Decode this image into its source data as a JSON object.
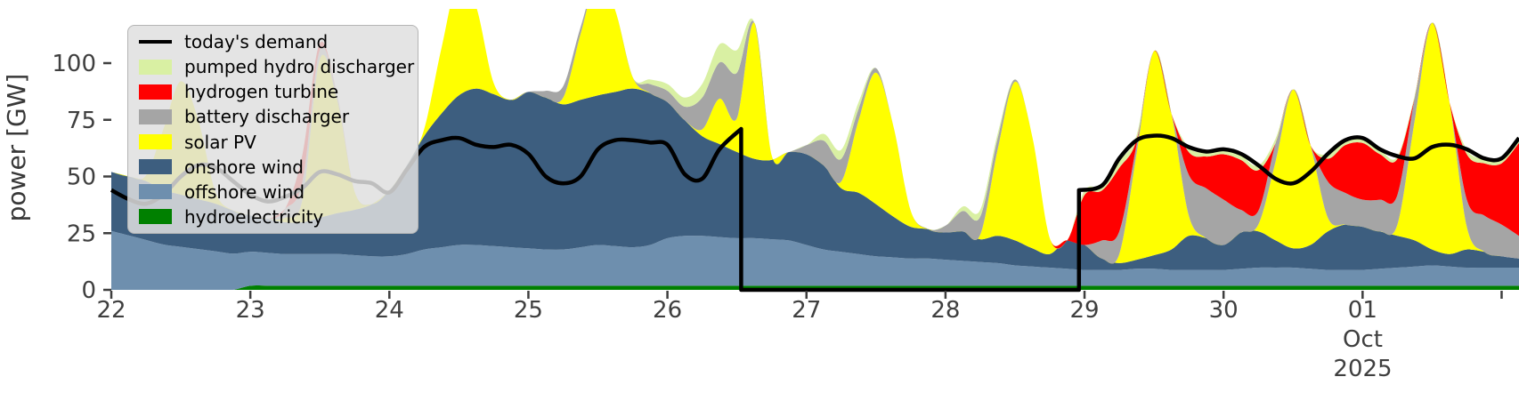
{
  "figure": {
    "background": "#ffffff"
  },
  "axes": {
    "ylabel": "power [GW]",
    "y_ticks": [
      0,
      25,
      50,
      75,
      100
    ],
    "ylim": [
      0,
      124
    ],
    "x_tick_days": [
      22,
      23,
      24,
      25,
      26,
      27,
      28,
      29,
      30,
      31
    ],
    "x_tick_labels": [
      "22",
      "23",
      "24",
      "25",
      "26",
      "27",
      "28",
      "29",
      "30",
      "01"
    ],
    "x_minor_tick_days": [
      32
    ],
    "date_label_month": "Oct",
    "date_label_year": "2025",
    "text_color": "#3f3f3f"
  },
  "legend": {
    "entries": [
      {
        "id": "todays-demand",
        "label": "today's demand",
        "color": "#000000",
        "type": "line"
      },
      {
        "id": "pumped-hydro-discharger",
        "label": "pumped hydro discharger",
        "color": "#d9f0a3",
        "type": "patch"
      },
      {
        "id": "hydrogen-turbine",
        "label": "hydrogen turbine",
        "color": "#ff0000",
        "type": "patch"
      },
      {
        "id": "battery-discharger",
        "label": "battery discharger",
        "color": "#a5a5a5",
        "type": "patch"
      },
      {
        "id": "solar-pv",
        "label": "solar PV",
        "color": "#ffff00",
        "type": "patch"
      },
      {
        "id": "onshore-wind",
        "label": "onshore wind",
        "color": "#3d5e7f",
        "type": "patch"
      },
      {
        "id": "offshore-wind",
        "label": "offshore wind",
        "color": "#6e8fae",
        "type": "patch"
      },
      {
        "id": "hydroelectricity",
        "label": "hydroelectricity",
        "color": "#008000",
        "type": "patch"
      }
    ]
  },
  "chart_data": {
    "type": "area",
    "stacked": true,
    "title": "",
    "xlabel": "",
    "ylabel": "power [GW]",
    "x_unit": "day of month, Sep 22 - Oct 2, 2025",
    "x_start": 22,
    "x_end": 32.125,
    "x_step": 0.125,
    "grid": false,
    "legend_position": "upper-left",
    "series": [
      {
        "id": "hydroelectricity",
        "name": "hydroelectricity",
        "color": "#008000",
        "values": [
          0,
          0,
          0,
          0,
          0,
          0,
          0,
          0,
          1.8,
          1.8,
          1.8,
          1.8,
          1.8,
          1.8,
          1.8,
          1.8,
          1.8,
          1.8,
          1.8,
          1.8,
          1.8,
          1.8,
          1.8,
          1.8,
          1.8,
          1.8,
          1.8,
          1.8,
          1.8,
          1.8,
          1.8,
          1.8,
          1.8,
          1.8,
          1.8,
          1.8,
          1.8,
          1.8,
          1.8,
          1.8,
          1.8,
          1.8,
          1.8,
          1.8,
          1.8,
          1.8,
          1.8,
          1.8,
          1.8,
          1.8,
          1.8,
          1.8,
          1.8,
          1.8,
          1.8,
          1.8,
          1.8,
          1.8,
          1.8,
          1.8,
          1.8,
          1.8,
          1.8,
          1.8,
          1.8,
          1.8,
          1.8,
          1.8,
          1.8,
          1.8,
          1.8,
          1.8,
          1.8,
          1.8,
          1.8,
          1.8,
          1.8,
          1.8,
          1.8,
          1.8,
          1.8,
          1.8
        ]
      },
      {
        "id": "offshore-wind",
        "name": "offshore wind",
        "color": "#6e8fae",
        "values": [
          26,
          24,
          22,
          20,
          19,
          18,
          17,
          16,
          15,
          14.5,
          14,
          14,
          14,
          14,
          13.5,
          13,
          13,
          14,
          16,
          17,
          18,
          18,
          17.5,
          17,
          16.5,
          16,
          16,
          17,
          18,
          17.5,
          17,
          18,
          21,
          22,
          22,
          21.5,
          21,
          21,
          20.5,
          20,
          18,
          16,
          15,
          14,
          13,
          12.5,
          12,
          12,
          11.5,
          11,
          10.5,
          10,
          9,
          8.5,
          8,
          7.5,
          7,
          7,
          7,
          7.5,
          7.5,
          7,
          7,
          7,
          7,
          7.5,
          8,
          8,
          8,
          7.5,
          7,
          7,
          7,
          7.5,
          8,
          8.5,
          9,
          8.5,
          8,
          8,
          8,
          8
        ]
      },
      {
        "id": "onshore-wind",
        "name": "onshore wind",
        "color": "#3d5e7f",
        "values": [
          26,
          26,
          26,
          24,
          23,
          22,
          21,
          19,
          16,
          15,
          14,
          14,
          16,
          18,
          20,
          23,
          29,
          39,
          50,
          59,
          66,
          69,
          67,
          65,
          69,
          67,
          64,
          65,
          66,
          68,
          70,
          67,
          60,
          51,
          44,
          41,
          38,
          35,
          35,
          39,
          40,
          37,
          28,
          27,
          23,
          18,
          14,
          13,
          12,
          13,
          10,
          12,
          11,
          8,
          6,
          12.5,
          11,
          5,
          3,
          4,
          6,
          9,
          15,
          14,
          11,
          16,
          16,
          12,
          8.5,
          10.5,
          17,
          20,
          19,
          16.5,
          14,
          11.5,
          7,
          5.5,
          8,
          7,
          5,
          4
        ]
      },
      {
        "id": "solar-pv",
        "name": "solar PV",
        "color": "#ffff00",
        "values": [
          0,
          0,
          2.5,
          27,
          50,
          35,
          5,
          0,
          0,
          0,
          2,
          10,
          70,
          50,
          8,
          0,
          0,
          0,
          3,
          29,
          52,
          36,
          5,
          0,
          0,
          0,
          3,
          29,
          52,
          36,
          5,
          0,
          0,
          0,
          3,
          20,
          15,
          60,
          2,
          0,
          0,
          0,
          3,
          32,
          58,
          40,
          7,
          0,
          0,
          0,
          2,
          38,
          70,
          49,
          7,
          0,
          0,
          0,
          4,
          47,
          90,
          60,
          9,
          0,
          0,
          0,
          3,
          35,
          70,
          44,
          6,
          0,
          0,
          0,
          5,
          53,
          100,
          67,
          10,
          0,
          0,
          0
        ]
      },
      {
        "id": "battery-discharger",
        "name": "battery discharger",
        "color": "#a5a5a5",
        "values": [
          0,
          0,
          0,
          0,
          0,
          0,
          0,
          0,
          0,
          0,
          4,
          8,
          4,
          2,
          0,
          0,
          0,
          0,
          0,
          0,
          0,
          0,
          0,
          0,
          0,
          3,
          5,
          3,
          0,
          0,
          0,
          4,
          5,
          6,
          14,
          16,
          20,
          0,
          0,
          0,
          4,
          11,
          10,
          5,
          2,
          0,
          0,
          0,
          3,
          9,
          8,
          5,
          1,
          0,
          0,
          0,
          0,
          8,
          10,
          4,
          0,
          0,
          18,
          22,
          20,
          10,
          6,
          8,
          0,
          0,
          16,
          14,
          12,
          14,
          13,
          10,
          0,
          0,
          12,
          16,
          14,
          10
        ]
      },
      {
        "id": "hydrogen-turbine",
        "name": "hydrogen turbine",
        "color": "#ff0000",
        "values": [
          0,
          0,
          0,
          0,
          0,
          0,
          0,
          0,
          0,
          0,
          0,
          12,
          3,
          0,
          0,
          0,
          0,
          0,
          0,
          0,
          0,
          0,
          0,
          0,
          0,
          0,
          0,
          0,
          0,
          0,
          0,
          0,
          0,
          0,
          0,
          0,
          0,
          0,
          0,
          0,
          0,
          0,
          0,
          0,
          0,
          0,
          0,
          0,
          0,
          0,
          0,
          0,
          0,
          0,
          0,
          0,
          22,
          22,
          28,
          2,
          0,
          0,
          10,
          14,
          20,
          22,
          18,
          0,
          0,
          0,
          10,
          21,
          25,
          20,
          16,
          0,
          0,
          0,
          20,
          23,
          27,
          41
        ]
      },
      {
        "id": "pumped-hydro-discharger",
        "name": "pumped hydro discharger",
        "color": "#d9f0a3",
        "values": [
          0,
          0,
          0,
          0,
          0,
          0,
          0,
          0,
          0,
          0,
          0,
          0,
          0,
          0,
          0,
          0,
          0,
          0,
          0,
          0,
          0,
          0,
          0,
          0,
          0,
          0,
          0,
          0,
          0,
          0,
          0,
          2,
          3,
          4,
          6,
          8,
          10,
          0,
          0,
          0,
          0,
          3,
          4,
          3,
          0,
          0,
          0,
          0,
          0,
          2,
          3,
          2,
          0,
          0,
          0,
          0,
          2,
          2,
          3,
          2,
          0,
          0,
          2,
          2,
          2,
          2,
          2,
          2,
          0,
          0,
          2,
          2,
          2,
          2,
          1,
          1,
          0,
          0,
          2,
          2,
          2,
          2
        ]
      }
    ],
    "demand_line": {
      "name": "today's demand",
      "color": "#000000",
      "width": 4.5,
      "points": [
        [
          22,
          44
        ],
        [
          22.125,
          40
        ],
        [
          22.25,
          38
        ],
        [
          22.375,
          42
        ],
        [
          22.5,
          50
        ],
        [
          22.625,
          55
        ],
        [
          22.75,
          54
        ],
        [
          22.875,
          48
        ],
        [
          23,
          42
        ],
        [
          23.125,
          39
        ],
        [
          23.25,
          41
        ],
        [
          23.375,
          45
        ],
        [
          23.5,
          52
        ],
        [
          23.625,
          51
        ],
        [
          23.75,
          48
        ],
        [
          23.875,
          47
        ],
        [
          24,
          43
        ],
        [
          24.125,
          53
        ],
        [
          24.25,
          63
        ],
        [
          24.375,
          66
        ],
        [
          24.5,
          67
        ],
        [
          24.625,
          64
        ],
        [
          24.75,
          63
        ],
        [
          24.875,
          64
        ],
        [
          25,
          60
        ],
        [
          25.125,
          50
        ],
        [
          25.25,
          47
        ],
        [
          25.375,
          50
        ],
        [
          25.5,
          62
        ],
        [
          25.625,
          66
        ],
        [
          25.75,
          66
        ],
        [
          25.875,
          65
        ],
        [
          26,
          64
        ],
        [
          26.125,
          51
        ],
        [
          26.25,
          49
        ],
        [
          26.375,
          62
        ],
        [
          26.53,
          71
        ],
        [
          26.53,
          0
        ],
        [
          28.96,
          0
        ],
        [
          28.96,
          44
        ],
        [
          29.125,
          46
        ],
        [
          29.25,
          58
        ],
        [
          29.375,
          66
        ],
        [
          29.5,
          68
        ],
        [
          29.625,
          67
        ],
        [
          29.75,
          63
        ],
        [
          29.875,
          61
        ],
        [
          30,
          62
        ],
        [
          30.125,
          60
        ],
        [
          30.25,
          55
        ],
        [
          30.375,
          49
        ],
        [
          30.5,
          47
        ],
        [
          30.625,
          52
        ],
        [
          30.75,
          60
        ],
        [
          30.875,
          66
        ],
        [
          31,
          67
        ],
        [
          31.125,
          62
        ],
        [
          31.25,
          59
        ],
        [
          31.375,
          58
        ],
        [
          31.5,
          63
        ],
        [
          31.625,
          64
        ],
        [
          31.75,
          62
        ],
        [
          31.875,
          58
        ],
        [
          32,
          58
        ],
        [
          32.125,
          67
        ]
      ]
    }
  }
}
